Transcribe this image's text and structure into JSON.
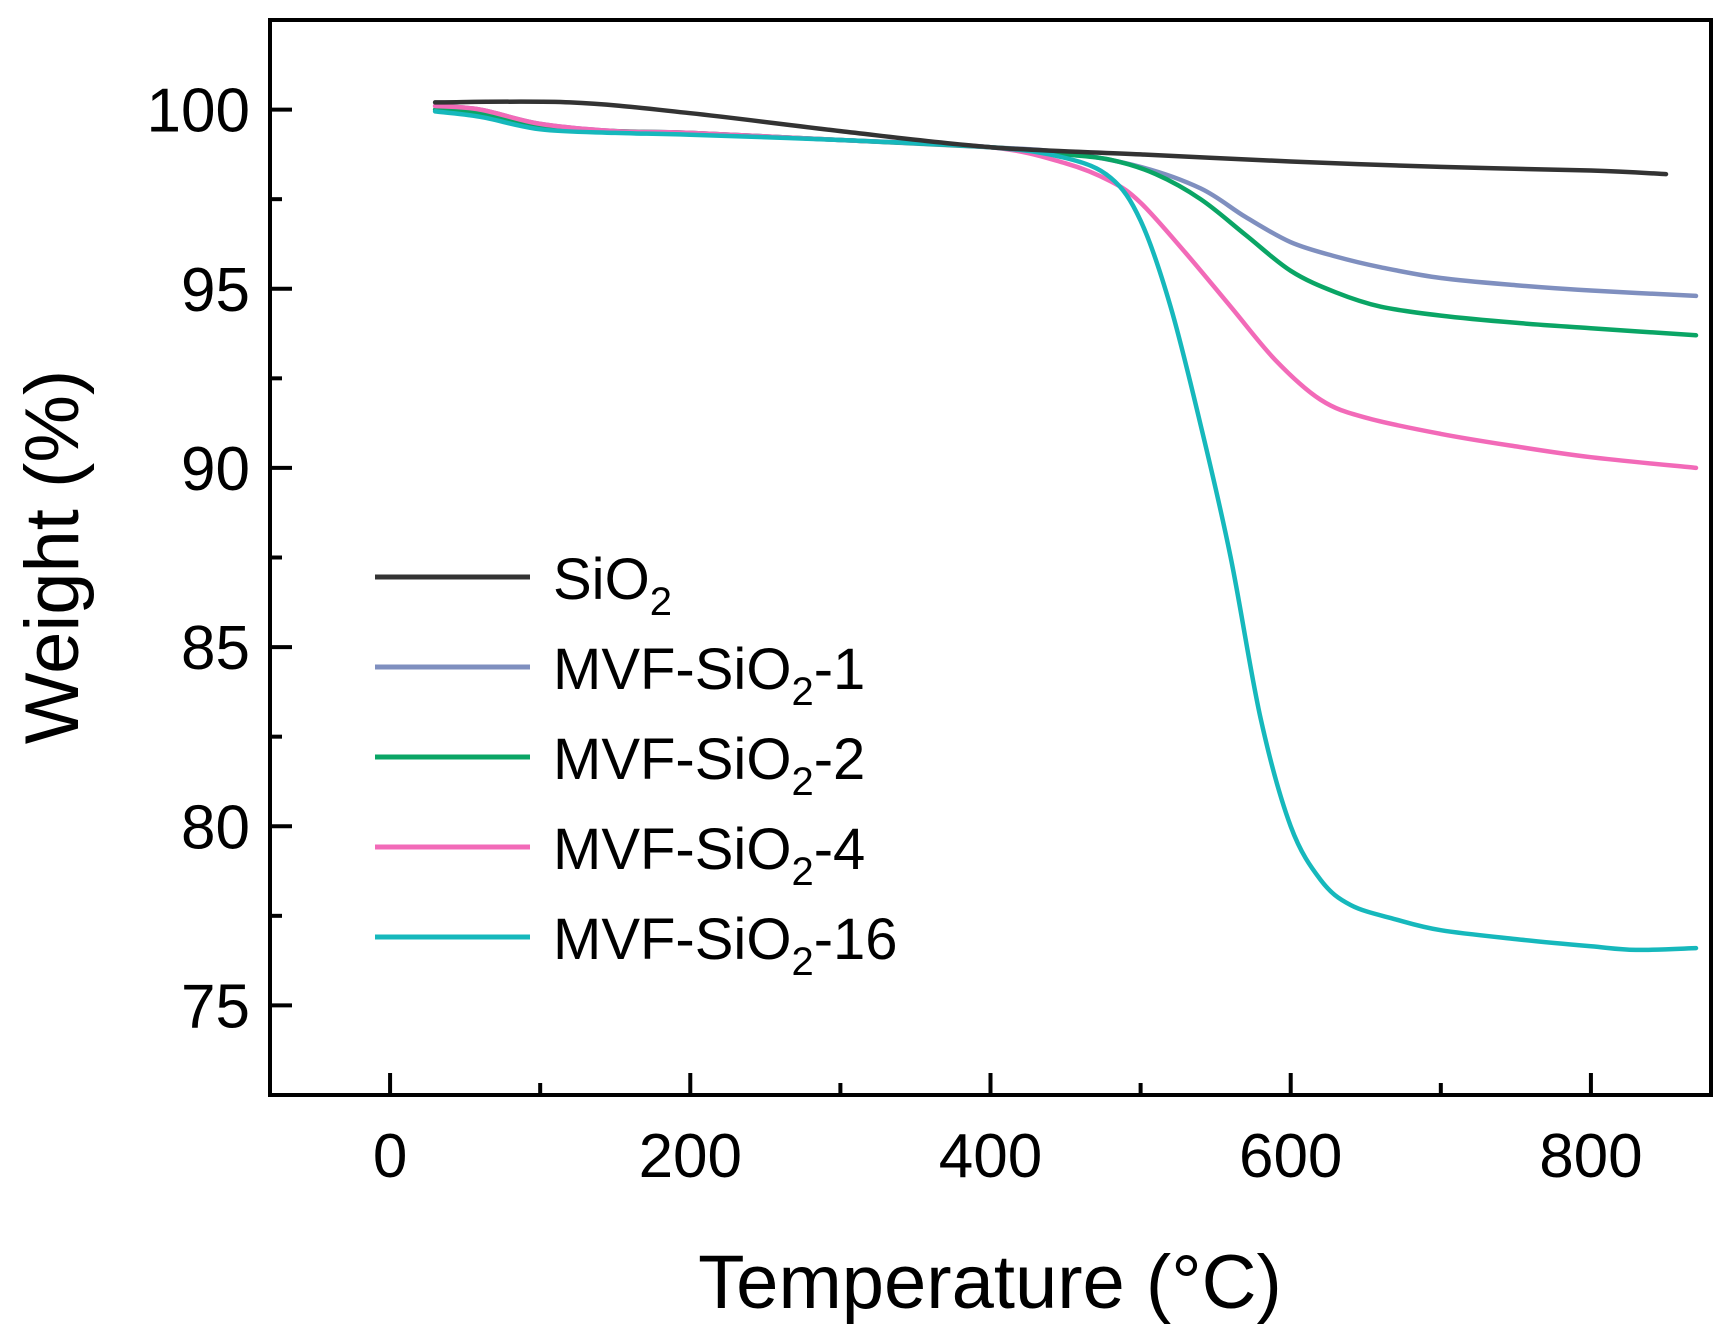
{
  "chart_data": {
    "type": "line",
    "xlabel": "Temperature (°C)",
    "ylabel": "Weight (%)",
    "xlim": [
      -80,
      880
    ],
    "ylim": [
      72.5,
      102.5
    ],
    "xticks": [
      0,
      200,
      400,
      600,
      800
    ],
    "xtick_labels": [
      "0",
      "200",
      "400",
      "600",
      "800"
    ],
    "yticks": [
      75,
      80,
      85,
      90,
      95,
      100
    ],
    "ytick_labels": [
      "75",
      "80",
      "85",
      "90",
      "95",
      "100"
    ],
    "legend_position": "bottom-left",
    "grid": false,
    "series": [
      {
        "name": "SiO₂",
        "label_main": "SiO",
        "label_sub": "2",
        "label_tail": "",
        "color": "#333333",
        "x": [
          30,
          120,
          200,
          300,
          400,
          500,
          600,
          700,
          800,
          850
        ],
        "y": [
          100.2,
          100.2,
          99.9,
          99.4,
          98.95,
          98.75,
          98.55,
          98.4,
          98.3,
          98.2
        ]
      },
      {
        "name": "MVF-SiO₂-1",
        "label_main": "MVF-SiO",
        "label_sub": "2",
        "label_tail": "-1",
        "color": "#7f8fbf",
        "x": [
          30,
          60,
          100,
          150,
          200,
          300,
          400,
          450,
          500,
          540,
          570,
          600,
          630,
          660,
          700,
          750,
          800,
          870
        ],
        "y": [
          100.1,
          100.0,
          99.6,
          99.4,
          99.35,
          99.15,
          98.95,
          98.8,
          98.4,
          97.8,
          97.0,
          96.3,
          95.9,
          95.6,
          95.3,
          95.1,
          94.95,
          94.8
        ]
      },
      {
        "name": "MVF-SiO₂-2",
        "label_main": "MVF-SiO",
        "label_sub": "2",
        "label_tail": "-2",
        "color": "#0aa565",
        "x": [
          30,
          60,
          100,
          150,
          200,
          300,
          400,
          450,
          480,
          510,
          540,
          570,
          600,
          630,
          660,
          700,
          750,
          800,
          870
        ],
        "y": [
          100.0,
          99.9,
          99.5,
          99.4,
          99.35,
          99.15,
          98.95,
          98.75,
          98.6,
          98.2,
          97.5,
          96.5,
          95.5,
          94.9,
          94.5,
          94.25,
          94.05,
          93.9,
          93.7
        ]
      },
      {
        "name": "MVF-SiO₂-4",
        "label_main": "MVF-SiO",
        "label_sub": "2",
        "label_tail": "-4",
        "color": "#f26ab8",
        "x": [
          30,
          60,
          100,
          150,
          200,
          300,
          400,
          450,
          480,
          500,
          530,
          560,
          590,
          620,
          650,
          700,
          750,
          800,
          870
        ],
        "y": [
          100.1,
          100.0,
          99.6,
          99.4,
          99.35,
          99.15,
          98.95,
          98.5,
          98.0,
          97.4,
          96.0,
          94.5,
          93.0,
          91.9,
          91.4,
          90.95,
          90.6,
          90.3,
          90.0
        ]
      },
      {
        "name": "MVF-SiO₂-16",
        "label_main": "MVF-SiO",
        "label_sub": "2",
        "label_tail": "-16",
        "color": "#16b8bc",
        "x": [
          30,
          60,
          100,
          150,
          200,
          300,
          400,
          450,
          480,
          500,
          520,
          540,
          560,
          580,
          600,
          620,
          640,
          670,
          700,
          750,
          800,
          830,
          870
        ],
        "y": [
          99.95,
          99.8,
          99.45,
          99.35,
          99.3,
          99.15,
          98.95,
          98.65,
          98.1,
          96.9,
          94.5,
          91.2,
          87.5,
          83.0,
          80.0,
          78.5,
          77.8,
          77.4,
          77.1,
          76.85,
          76.65,
          76.55,
          76.6
        ]
      }
    ]
  }
}
